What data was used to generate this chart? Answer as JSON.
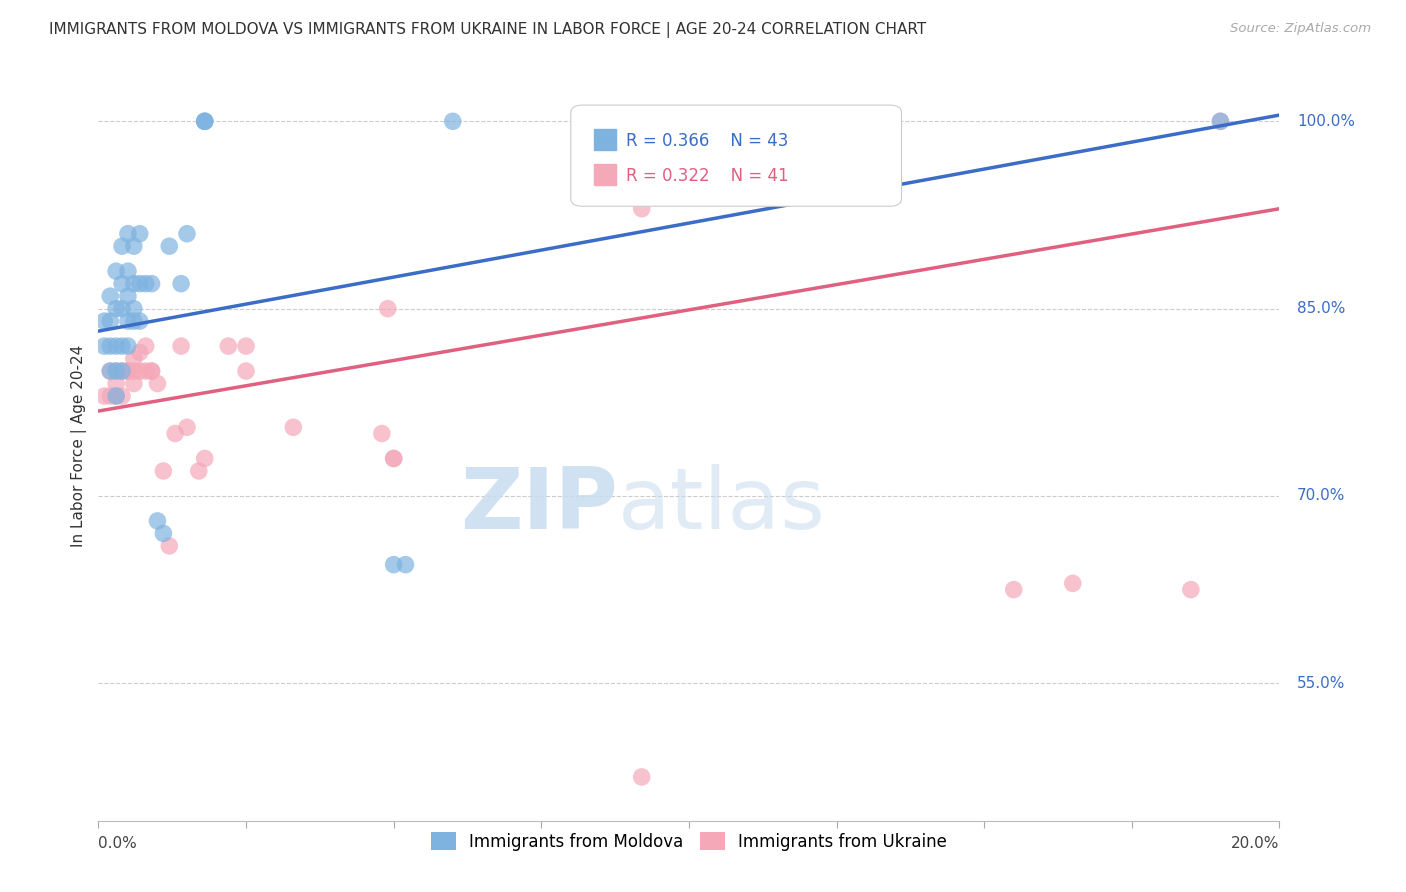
{
  "title": "IMMIGRANTS FROM MOLDOVA VS IMMIGRANTS FROM UKRAINE IN LABOR FORCE | AGE 20-24 CORRELATION CHART",
  "source": "Source: ZipAtlas.com",
  "ylabel": "In Labor Force | Age 20-24",
  "legend1_label": "Immigrants from Moldova",
  "legend2_label": "Immigrants from Ukraine",
  "r_moldova": 0.366,
  "n_moldova": 43,
  "r_ukraine": 0.322,
  "n_ukraine": 41,
  "blue_color": "#7EB3E0",
  "pink_color": "#F4A8B8",
  "blue_line_color": "#3B6DC7",
  "pink_line_color": "#E06080",
  "blue_line_x0": 0.0,
  "blue_line_y0": 0.832,
  "blue_line_x1": 0.2,
  "blue_line_y1": 1.005,
  "pink_line_x0": 0.0,
  "pink_line_y0": 0.768,
  "pink_line_x1": 0.2,
  "pink_line_y1": 0.93,
  "xmin": 0.0,
  "xmax": 0.2,
  "ymin": 0.44,
  "ymax": 1.04,
  "ytick_positions": [
    1.0,
    0.85,
    0.7,
    0.55
  ],
  "ytick_labels": [
    "100.0%",
    "85.0%",
    "70.0%",
    "55.0%"
  ],
  "moldova_x": [
    0.001,
    0.001,
    0.002,
    0.002,
    0.002,
    0.002,
    0.003,
    0.003,
    0.003,
    0.003,
    0.003,
    0.004,
    0.004,
    0.004,
    0.004,
    0.004,
    0.005,
    0.005,
    0.005,
    0.005,
    0.005,
    0.006,
    0.006,
    0.006,
    0.006,
    0.007,
    0.007,
    0.007,
    0.008,
    0.009,
    0.01,
    0.011,
    0.012,
    0.014,
    0.015,
    0.018,
    0.018,
    0.018,
    0.05,
    0.052,
    0.06,
    0.125,
    0.19
  ],
  "moldova_y": [
    0.82,
    0.84,
    0.8,
    0.82,
    0.84,
    0.86,
    0.78,
    0.8,
    0.82,
    0.85,
    0.88,
    0.8,
    0.82,
    0.85,
    0.87,
    0.9,
    0.82,
    0.84,
    0.86,
    0.88,
    0.91,
    0.84,
    0.85,
    0.87,
    0.9,
    0.84,
    0.87,
    0.91,
    0.87,
    0.87,
    0.68,
    0.67,
    0.9,
    0.87,
    0.91,
    1.0,
    1.0,
    1.0,
    0.645,
    0.645,
    1.0,
    1.0,
    1.0
  ],
  "ukraine_x": [
    0.001,
    0.002,
    0.002,
    0.003,
    0.003,
    0.003,
    0.004,
    0.004,
    0.005,
    0.005,
    0.006,
    0.006,
    0.006,
    0.007,
    0.007,
    0.008,
    0.008,
    0.009,
    0.009,
    0.01,
    0.011,
    0.012,
    0.013,
    0.014,
    0.015,
    0.017,
    0.018,
    0.022,
    0.025,
    0.025,
    0.033,
    0.048,
    0.049,
    0.05,
    0.05,
    0.092,
    0.092,
    0.155,
    0.165,
    0.185,
    0.19
  ],
  "ukraine_y": [
    0.78,
    0.78,
    0.8,
    0.79,
    0.8,
    0.78,
    0.8,
    0.78,
    0.8,
    0.8,
    0.8,
    0.79,
    0.81,
    0.8,
    0.815,
    0.8,
    0.82,
    0.8,
    0.8,
    0.79,
    0.72,
    0.66,
    0.75,
    0.82,
    0.755,
    0.72,
    0.73,
    0.82,
    0.8,
    0.82,
    0.755,
    0.75,
    0.85,
    0.73,
    0.73,
    0.475,
    0.93,
    0.625,
    0.63,
    0.625,
    1.0
  ]
}
